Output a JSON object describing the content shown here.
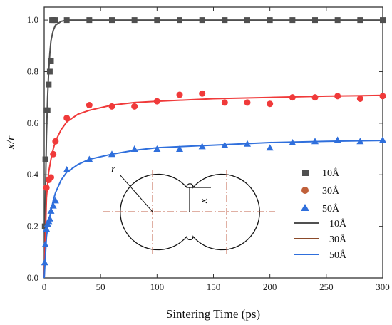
{
  "chart_data": {
    "type": "scatter",
    "xlabel": "Sintering Time (ps)",
    "ylabel": "x/r",
    "xlim": [
      0,
      300
    ],
    "ylim": [
      0,
      1.05
    ],
    "xticks": [
      0,
      50,
      100,
      150,
      200,
      250,
      300
    ],
    "xtick_labels": [
      "0",
      "50",
      "100",
      "150",
      "200",
      "250",
      "300"
    ],
    "yticks": [
      0.0,
      0.2,
      0.4,
      0.6,
      0.8,
      1.0
    ],
    "ytick_labels": [
      "0.0",
      "0.2",
      "0.4",
      "0.6",
      "0.8",
      "1.0"
    ],
    "grid": false,
    "legend_position": "right",
    "series": [
      {
        "name": "10Å",
        "kind": "scatter",
        "marker": "square",
        "color": "#505050",
        "x": [
          0.5,
          1,
          2,
          3,
          4,
          5,
          6,
          7,
          8,
          10,
          20,
          40,
          60,
          80,
          100,
          120,
          140,
          160,
          180,
          200,
          220,
          240,
          260,
          280,
          300
        ],
        "y": [
          0.2,
          0.46,
          0.65,
          0.65,
          0.75,
          0.8,
          0.84,
          1.0,
          1.0,
          1.0,
          1.0,
          1.0,
          1.0,
          1.0,
          1.0,
          1.0,
          1.0,
          1.0,
          1.0,
          1.0,
          1.0,
          1.0,
          1.0,
          1.0,
          1.0
        ]
      },
      {
        "name": "30Å",
        "kind": "scatter",
        "marker": "circle",
        "color": "#f03a3a",
        "x": [
          2,
          4,
          6,
          8,
          10,
          20,
          40,
          60,
          80,
          100,
          120,
          140,
          160,
          180,
          200,
          220,
          240,
          260,
          280,
          300
        ],
        "y": [
          0.35,
          0.38,
          0.39,
          0.48,
          0.53,
          0.62,
          0.67,
          0.665,
          0.665,
          0.685,
          0.71,
          0.715,
          0.68,
          0.68,
          0.675,
          0.7,
          0.7,
          0.705,
          0.695,
          0.705
        ]
      },
      {
        "name": "50Å",
        "kind": "scatter",
        "marker": "triangle",
        "color": "#2f6fdc",
        "x": [
          0.5,
          1,
          2,
          3,
          4,
          5,
          6,
          8,
          10,
          20,
          40,
          60,
          80,
          100,
          120,
          140,
          160,
          180,
          200,
          220,
          240,
          260,
          280,
          300
        ],
        "y": [
          0.06,
          0.13,
          0.19,
          0.21,
          0.22,
          0.23,
          0.26,
          0.28,
          0.3,
          0.42,
          0.46,
          0.48,
          0.5,
          0.5,
          0.5,
          0.51,
          0.515,
          0.52,
          0.505,
          0.525,
          0.53,
          0.535,
          0.53,
          0.535
        ]
      },
      {
        "name": "10Å",
        "kind": "line",
        "color": "#505050",
        "x": [
          0,
          1,
          2,
          3,
          4,
          5,
          6,
          8,
          10,
          15,
          20,
          30,
          40,
          60,
          80,
          100,
          150,
          200,
          250,
          300
        ],
        "y": [
          0.0,
          0.3,
          0.55,
          0.7,
          0.8,
          0.87,
          0.92,
          0.96,
          0.98,
          0.995,
          1.0,
          1.0,
          1.0,
          1.0,
          1.0,
          1.0,
          1.0,
          1.0,
          1.0,
          1.0
        ]
      },
      {
        "name": "30Å",
        "kind": "line",
        "color": "#f03a3a",
        "x": [
          0,
          2,
          4,
          6,
          8,
          10,
          15,
          20,
          30,
          40,
          60,
          80,
          100,
          150,
          200,
          250,
          300
        ],
        "y": [
          0.0,
          0.31,
          0.41,
          0.46,
          0.5,
          0.53,
          0.575,
          0.605,
          0.635,
          0.65,
          0.67,
          0.68,
          0.685,
          0.695,
          0.7,
          0.705,
          0.708
        ]
      },
      {
        "name": "50Å",
        "kind": "line",
        "color": "#2f6fdc",
        "x": [
          0,
          2,
          4,
          6,
          8,
          10,
          15,
          20,
          30,
          40,
          60,
          80,
          100,
          150,
          200,
          250,
          300
        ],
        "y": [
          0.0,
          0.16,
          0.22,
          0.26,
          0.3,
          0.33,
          0.38,
          0.41,
          0.44,
          0.46,
          0.48,
          0.495,
          0.505,
          0.515,
          0.525,
          0.53,
          0.533
        ]
      }
    ]
  },
  "inset": {
    "radius_label": "r",
    "neck_label": "x"
  }
}
